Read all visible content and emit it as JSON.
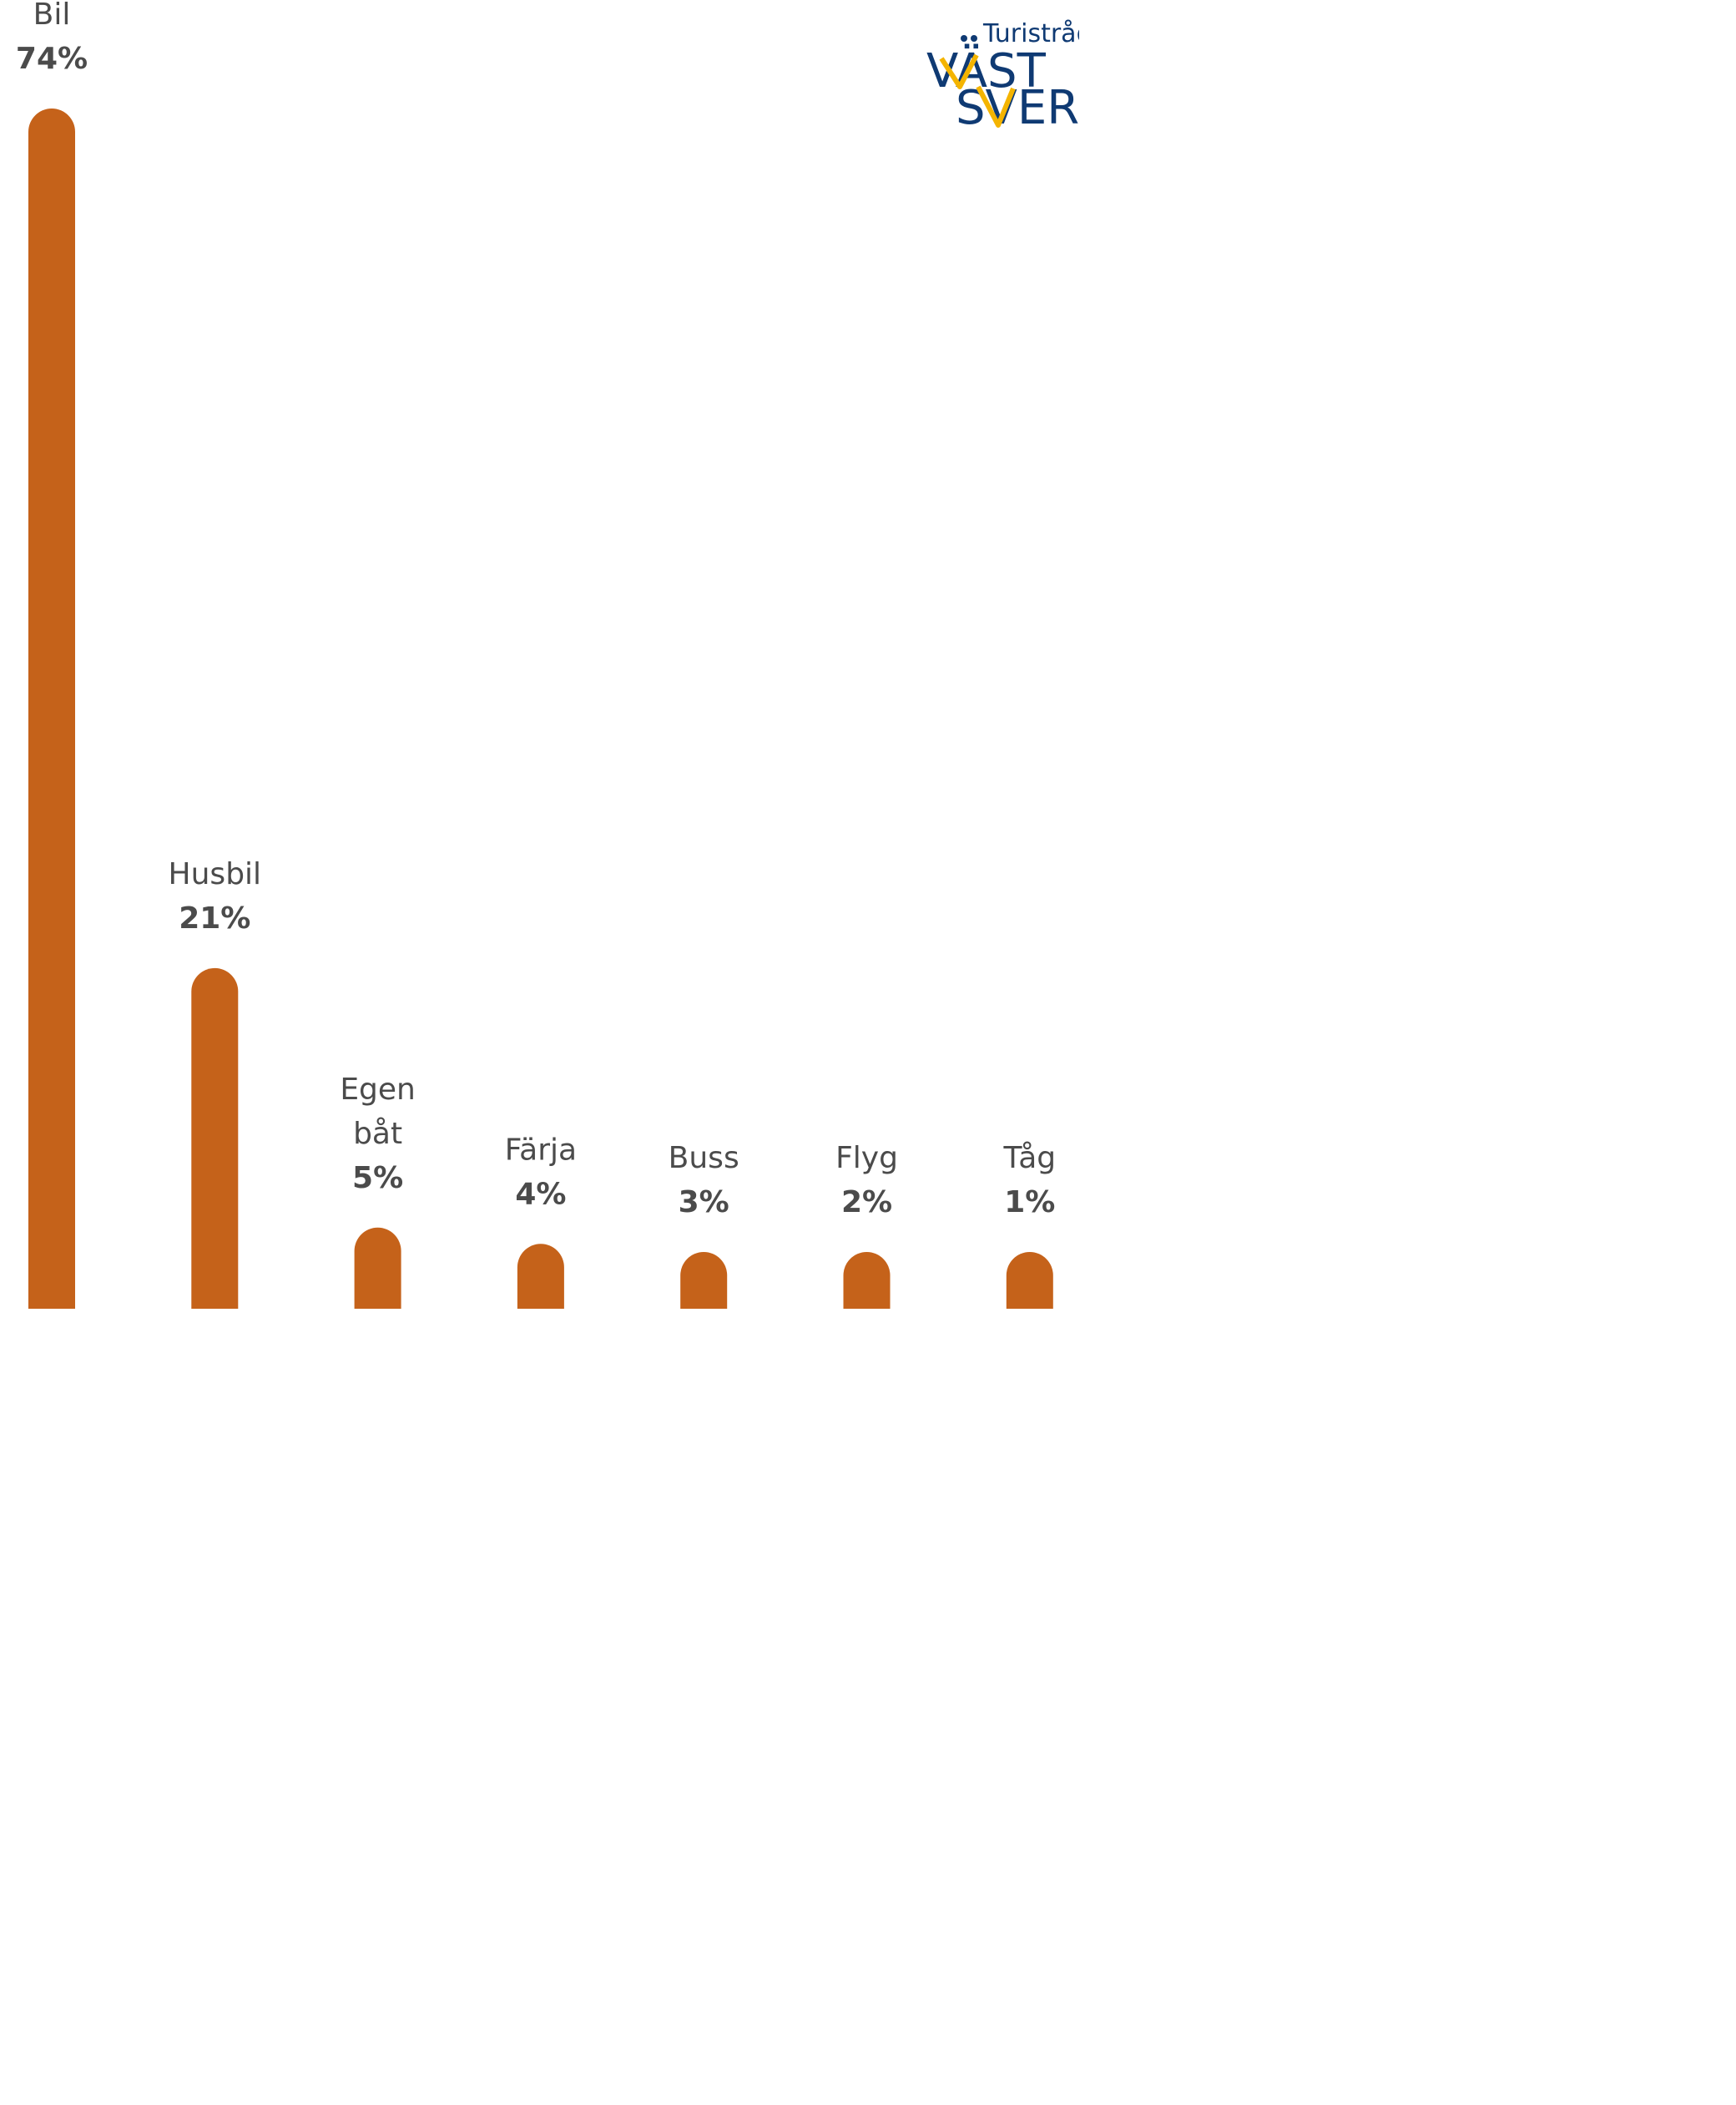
{
  "chart_data": {
    "type": "bar",
    "categories": [
      "Bil",
      "Husbil",
      "Egen båt",
      "Färja",
      "Buss",
      "Flyg",
      "Tåg"
    ],
    "category_lines": [
      [
        "Bil"
      ],
      [
        "Husbil"
      ],
      [
        "Egen",
        "båt"
      ],
      [
        "Färja"
      ],
      [
        "Buss"
      ],
      [
        "Flyg"
      ],
      [
        "Tåg"
      ]
    ],
    "values": [
      74,
      21,
      5,
      4,
      3,
      2,
      1
    ],
    "value_labels": [
      "74%",
      "21%",
      "5%",
      "4%",
      "3%",
      "2%",
      "1%"
    ],
    "unit": "%",
    "bar_color": "#c5621a",
    "grid": false,
    "legend": "none"
  },
  "logo": {
    "small_text": "Turistråde",
    "line1": "VÄST",
    "line2": "SVERIG",
    "navy": "#0f3a73",
    "yellow": "#f4b400"
  }
}
